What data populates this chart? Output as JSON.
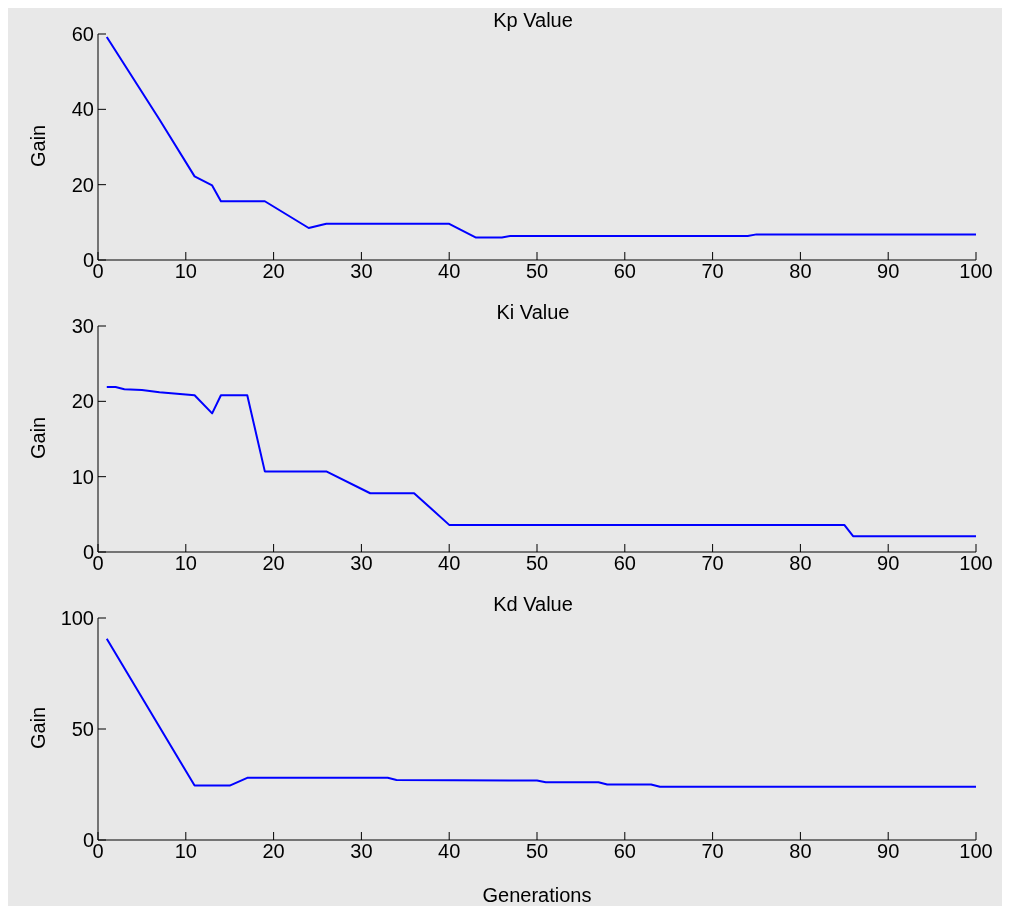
{
  "chart_data": [
    {
      "type": "line",
      "title": "Kp Value",
      "ylabel": "Gain",
      "xlim": [
        0,
        100
      ],
      "xticks": [
        0,
        10,
        20,
        30,
        40,
        50,
        60,
        70,
        80,
        90,
        100
      ],
      "ylim": [
        0,
        60
      ],
      "yticks": [
        0,
        20,
        40,
        60
      ],
      "grid": false,
      "legend": false,
      "marker": "none",
      "series": [
        {
          "color": "#0000ff",
          "x": [
            1,
            7,
            11,
            13,
            14,
            19,
            24,
            26,
            40,
            43,
            46,
            47,
            74,
            75,
            100
          ],
          "values": [
            59.2,
            37.3,
            22.2,
            19.8,
            15.6,
            15.6,
            8.5,
            9.6,
            9.6,
            6.0,
            6.0,
            6.4,
            6.4,
            6.8,
            6.8
          ]
        }
      ]
    },
    {
      "type": "line",
      "title": "Ki Value",
      "ylabel": "Gain",
      "xlim": [
        0,
        100
      ],
      "xticks": [
        0,
        10,
        20,
        30,
        40,
        50,
        60,
        70,
        80,
        90,
        100
      ],
      "ylim": [
        0,
        30
      ],
      "yticks": [
        0,
        10,
        20,
        30
      ],
      "grid": false,
      "legend": false,
      "marker": "none",
      "series": [
        {
          "color": "#0000ff",
          "x": [
            1,
            2,
            3,
            5,
            7,
            11,
            13,
            14,
            17,
            19,
            26,
            31,
            36,
            38,
            40,
            85,
            86,
            100
          ],
          "values": [
            21.9,
            21.9,
            21.6,
            21.5,
            21.2,
            20.8,
            18.4,
            20.8,
            20.8,
            10.7,
            10.7,
            7.8,
            7.8,
            5.7,
            3.6,
            3.6,
            2.1,
            2.1
          ]
        }
      ]
    },
    {
      "type": "line",
      "title": "Kd Value",
      "ylabel": "Gain",
      "xlabel": "Generations",
      "xlim": [
        0,
        100
      ],
      "xticks": [
        0,
        10,
        20,
        30,
        40,
        50,
        60,
        70,
        80,
        90,
        100
      ],
      "ylim": [
        0,
        100
      ],
      "yticks": [
        0,
        50,
        100
      ],
      "grid": false,
      "legend": false,
      "marker": "none",
      "series": [
        {
          "color": "#0000ff",
          "x": [
            1,
            11,
            15,
            17,
            33,
            34,
            50,
            51,
            57,
            58,
            63,
            64,
            100
          ],
          "values": [
            90.7,
            24.5,
            24.5,
            28,
            28,
            27,
            26.8,
            26,
            26,
            25,
            25,
            24,
            24
          ]
        }
      ]
    }
  ]
}
